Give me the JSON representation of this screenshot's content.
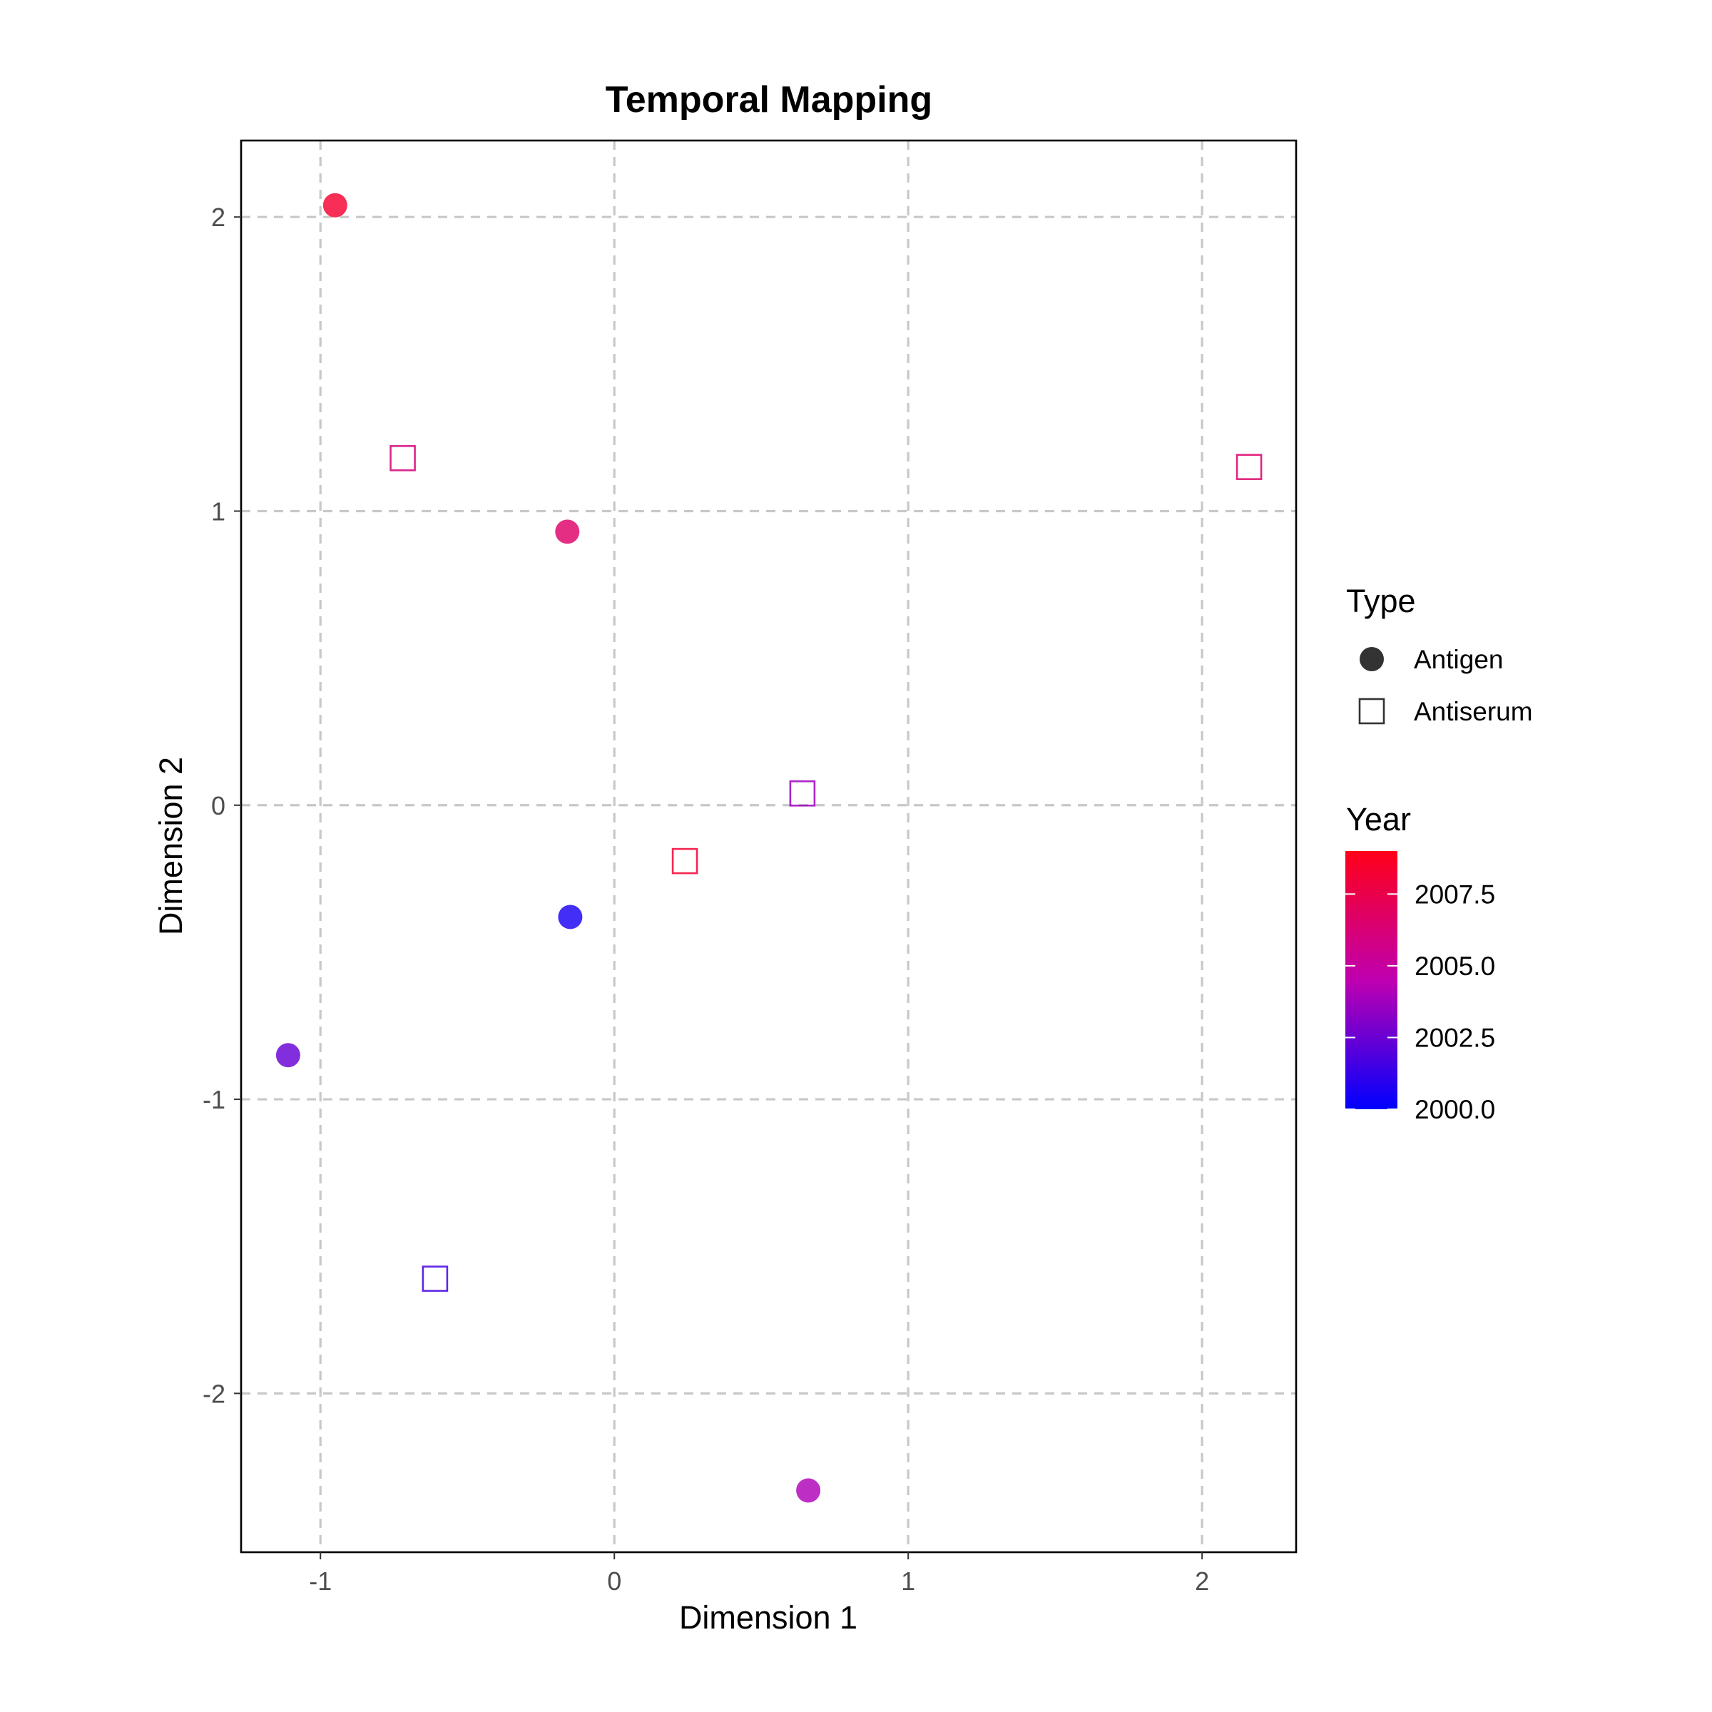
{
  "chart_data": {
    "type": "scatter",
    "title": "Temporal Mapping",
    "xlabel": "Dimension 1",
    "ylabel": "Dimension 2",
    "xlim": [
      -1.27,
      2.32
    ],
    "ylim": [
      -2.54,
      2.26
    ],
    "x_ticks": [
      -1,
      0,
      1,
      2
    ],
    "y_ticks": [
      -2,
      -1,
      0,
      1,
      2
    ],
    "x_tick_labels": [
      "-1",
      "0",
      "1",
      "2"
    ],
    "y_tick_labels": [
      "-2",
      "-1",
      "0",
      "1",
      "2"
    ],
    "grid": "major, dashed",
    "color_scale": {
      "low": "#0000ff",
      "high": "#ff0000",
      "min": 2000,
      "max": 2009
    },
    "points": [
      {
        "x": -0.95,
        "y": 2.04,
        "type": "Antigen",
        "year": 2008.3
      },
      {
        "x": -0.72,
        "y": 1.18,
        "type": "Antiserum",
        "year": 2006.1
      },
      {
        "x": -0.16,
        "y": 0.93,
        "type": "Antigen",
        "year": 2006.6
      },
      {
        "x": 2.16,
        "y": 1.15,
        "type": "Antiserum",
        "year": 2006.6
      },
      {
        "x": 0.64,
        "y": 0.04,
        "type": "Antiserum",
        "year": 2003.7
      },
      {
        "x": 0.24,
        "y": -0.19,
        "type": "Antiserum",
        "year": 2008.2
      },
      {
        "x": -0.15,
        "y": -0.38,
        "type": "Antigen",
        "year": 2000.6
      },
      {
        "x": -1.11,
        "y": -0.85,
        "type": "Antigen",
        "year": 2002.4
      },
      {
        "x": -0.61,
        "y": -1.61,
        "type": "Antiserum",
        "year": 2001.6
      },
      {
        "x": 0.66,
        "y": -2.33,
        "type": "Antigen",
        "year": 2004.1
      }
    ],
    "legend": {
      "placement": "right",
      "type": {
        "title": "Type",
        "items": [
          {
            "label": "Antigen",
            "shape": "filled-circle"
          },
          {
            "label": "Antiserum",
            "shape": "open-square"
          }
        ]
      },
      "year": {
        "title": "Year",
        "ticks": [
          2000.0,
          2002.5,
          2005.0,
          2007.5
        ],
        "tick_labels": [
          "2000.0",
          "2002.5",
          "2005.0",
          "2007.5"
        ]
      }
    }
  }
}
